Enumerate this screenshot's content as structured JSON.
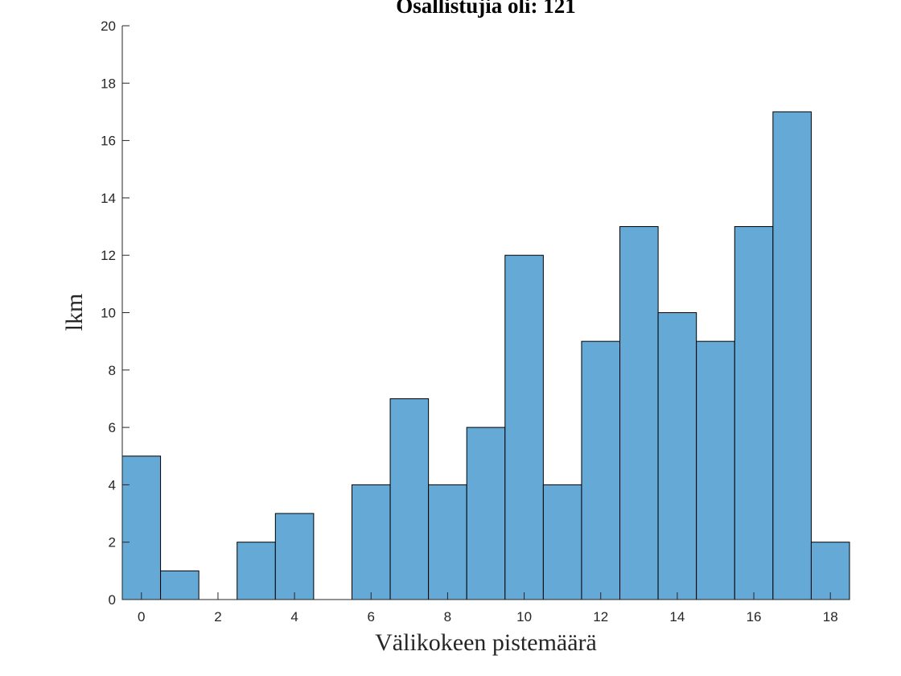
{
  "chart_data": {
    "type": "bar",
    "title": "Osallistujia oli: 121",
    "xlabel": "Välikokeen pistemäärä",
    "ylabel": "lkm",
    "categories": [
      0,
      1,
      2,
      3,
      4,
      5,
      6,
      7,
      8,
      9,
      10,
      11,
      12,
      13,
      14,
      15,
      16,
      17,
      18
    ],
    "values": [
      5,
      1,
      0,
      2,
      3,
      0,
      4,
      7,
      4,
      6,
      12,
      4,
      9,
      13,
      10,
      9,
      13,
      17,
      2
    ],
    "xlim": [
      -0.5,
      18.5
    ],
    "ylim": [
      0,
      20
    ],
    "xticks": [
      0,
      2,
      4,
      6,
      8,
      10,
      12,
      14,
      16,
      18
    ],
    "yticks": [
      0,
      2,
      4,
      6,
      8,
      10,
      12,
      14,
      16,
      18,
      20
    ],
    "bar_color": "#65a9d7",
    "edge_color": "#000000",
    "grid": false
  }
}
